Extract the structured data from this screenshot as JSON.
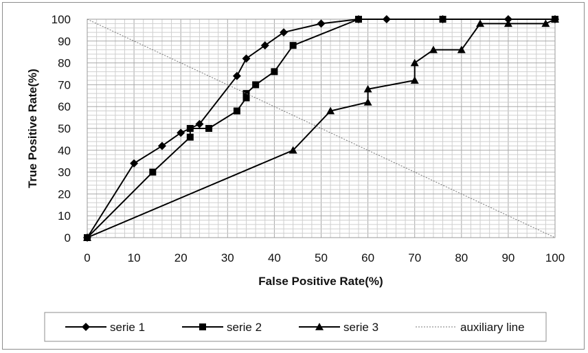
{
  "chart_data": {
    "type": "line",
    "xlabel": "False Positive Rate(%)",
    "ylabel": "True Positive Rate(%)",
    "xlim": [
      0,
      100
    ],
    "ylim": [
      0,
      100
    ],
    "x_ticks": [
      0,
      10,
      20,
      30,
      40,
      50,
      60,
      70,
      80,
      90,
      100
    ],
    "y_ticks": [
      0,
      10,
      20,
      30,
      40,
      50,
      60,
      70,
      80,
      90,
      100
    ],
    "grid": true,
    "legend_position": "bottom",
    "series": [
      {
        "name": "serie 1",
        "marker": "diamond",
        "color": "#000000",
        "points": [
          [
            0,
            0
          ],
          [
            10,
            34
          ],
          [
            16,
            42
          ],
          [
            20,
            48
          ],
          [
            24,
            52
          ],
          [
            32,
            74
          ],
          [
            34,
            82
          ],
          [
            38,
            88
          ],
          [
            42,
            94
          ],
          [
            50,
            98
          ],
          [
            58,
            100
          ],
          [
            64,
            100
          ],
          [
            76,
            100
          ],
          [
            90,
            100
          ],
          [
            100,
            100
          ]
        ]
      },
      {
        "name": "serie 2",
        "marker": "square",
        "color": "#000000",
        "points": [
          [
            0,
            0
          ],
          [
            14,
            30
          ],
          [
            22,
            46
          ],
          [
            22,
            50
          ],
          [
            26,
            50
          ],
          [
            32,
            58
          ],
          [
            34,
            64
          ],
          [
            34,
            66
          ],
          [
            36,
            70
          ],
          [
            40,
            76
          ],
          [
            44,
            88
          ],
          [
            58,
            100
          ],
          [
            76,
            100
          ],
          [
            100,
            100
          ]
        ]
      },
      {
        "name": "serie 3",
        "marker": "triangle",
        "color": "#000000",
        "points": [
          [
            0,
            0
          ],
          [
            44,
            40
          ],
          [
            52,
            58
          ],
          [
            60,
            62
          ],
          [
            60,
            68
          ],
          [
            70,
            72
          ],
          [
            70,
            80
          ],
          [
            74,
            86
          ],
          [
            80,
            86
          ],
          [
            84,
            98
          ],
          [
            90,
            98
          ],
          [
            98,
            98
          ],
          [
            100,
            100
          ]
        ]
      },
      {
        "name": "auxiliary line",
        "marker": "none",
        "style": "dotted",
        "color": "#777777",
        "points": [
          [
            0,
            100
          ],
          [
            100,
            0
          ]
        ]
      }
    ]
  }
}
